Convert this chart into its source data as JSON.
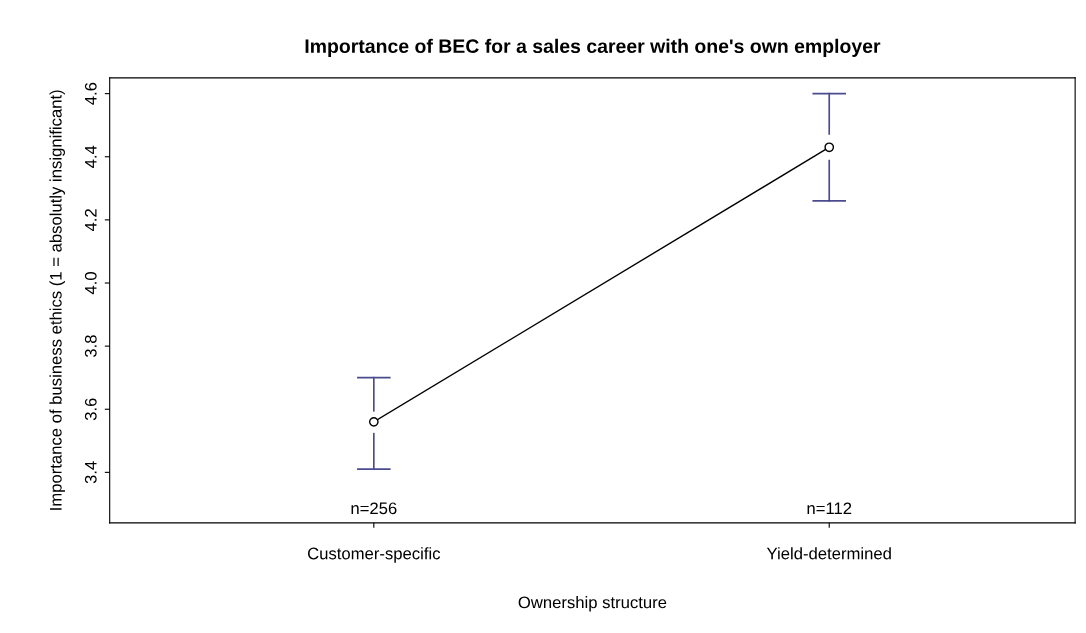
{
  "chart_data": {
    "type": "line",
    "title": "Importance of BEC for a sales career with one's own employer",
    "xlabel": "Ownership structure",
    "ylabel": "Importance of business ethics (1 = absolutly insignificant)",
    "categories": [
      "Customer-specific",
      "Yield-determined"
    ],
    "series": [
      {
        "color": "#000000",
        "values": [
          3.56,
          4.43
        ],
        "errors": [
          [
            3.41,
            3.7
          ],
          [
            4.26,
            4.6
          ]
        ]
      }
    ],
    "ylim": [
      3.24,
      4.65
    ],
    "yticks": [
      3.4,
      3.6,
      3.8,
      {
        "value": 4.0,
        "label": "4.0"
      },
      4.2,
      4.4,
      4.6
    ],
    "annotations": [
      "n=256",
      "n=112"
    ],
    "marker": "circle",
    "line_style": "solid",
    "grid": false,
    "legend": false
  }
}
